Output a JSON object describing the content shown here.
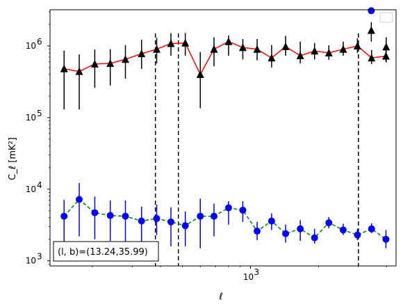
{
  "chart_data": {
    "type": "scatter",
    "title": "",
    "xlabel": "ℓ",
    "ylabel": "C_ℓ  [mK²]",
    "x_scale": "log",
    "y_scale": "log",
    "xlim": [
      130,
      4400
    ],
    "ylim": [
      850,
      3200000
    ],
    "grid": false,
    "legend": "top-right, empty",
    "x_ticks": [
      {
        "value": 1000,
        "label": "10",
        "exp": "3"
      }
    ],
    "y_ticks": [
      {
        "value": 1000,
        "label": "10",
        "exp": "3"
      },
      {
        "value": 10000,
        "label": "10",
        "exp": "4"
      },
      {
        "value": 100000,
        "label": "10",
        "exp": "5"
      },
      {
        "value": 1000000,
        "label": "10",
        "exp": "6"
      }
    ],
    "vlines": [
      380,
      480,
      3000
    ],
    "annotation": "(l, b)=(13.24,35.99)",
    "series": [
      {
        "marker": "triangle",
        "marker_color": "#000000",
        "line_color": "#ff0000",
        "line_style": "solid",
        "x": [
          150,
          175,
          205,
          240,
          280,
          330,
          385,
          445,
          515,
          600,
          690,
          800,
          925,
          1070,
          1240,
          1430,
          1660,
          1920,
          2220,
          2570,
          2970,
          3430,
          3970
        ],
        "y": [
          480000,
          440000,
          560000,
          570000,
          650000,
          780000,
          900000,
          1080000,
          1100000,
          400000,
          900000,
          1150000,
          950000,
          900000,
          680000,
          980000,
          730000,
          850000,
          800000,
          900000,
          1000000,
          680000,
          720000
        ],
        "err_low": [
          350000,
          310000,
          300000,
          290000,
          300000,
          300000,
          330000,
          350000,
          370000,
          265000,
          380000,
          420000,
          300000,
          270000,
          180000,
          250000,
          160000,
          200000,
          160000,
          170000,
          200000,
          120000,
          120000
        ],
        "err_high": [
          380000,
          320000,
          330000,
          330000,
          380000,
          440000,
          400000,
          430000,
          420000,
          420000,
          420000,
          250000,
          300000,
          350000,
          350000,
          400000,
          420000,
          250000,
          220000,
          250000,
          280000,
          200000,
          180000
        ]
      },
      {
        "marker": "circle",
        "marker_color": "#0000ff",
        "line_color": "#008000",
        "line_style": "dashed",
        "x": [
          150,
          175,
          205,
          240,
          280,
          330,
          385,
          445,
          515,
          600,
          690,
          800,
          925,
          1070,
          1240,
          1430,
          1660,
          1920,
          2220,
          2570,
          2970,
          3430,
          3970
        ],
        "y": [
          4200,
          7200,
          4700,
          4300,
          4200,
          3600,
          3900,
          3500,
          3100,
          4200,
          4200,
          5500,
          5100,
          2600,
          3600,
          2400,
          2800,
          2100,
          3400,
          2700,
          2300,
          2800,
          2000
        ],
        "err_low": [
          2800,
          5000,
          2700,
          2400,
          2400,
          1900,
          1600,
          1900,
          1500,
          2700,
          2000,
          2300,
          1600,
          650,
          900,
          600,
          900,
          350,
          550,
          400,
          350,
          350,
          500
        ],
        "err_high": [
          2900,
          5000,
          3200,
          2700,
          2800,
          2100,
          2200,
          2100,
          1800,
          3200,
          2100,
          1300,
          1700,
          900,
          1000,
          800,
          900,
          700,
          700,
          600,
          500,
          550,
          700
        ]
      }
    ],
    "extra_points": [
      {
        "series": 0,
        "x": 3420,
        "y": 1650000,
        "err_low": 500000,
        "err_high": 500000
      },
      {
        "series": 0,
        "x": 3980,
        "y": 970000,
        "err_low": 380000,
        "err_high": 350000
      },
      {
        "series": 1,
        "x": 3420,
        "y": 3100000,
        "err_low": 0,
        "err_high": 0
      }
    ]
  }
}
